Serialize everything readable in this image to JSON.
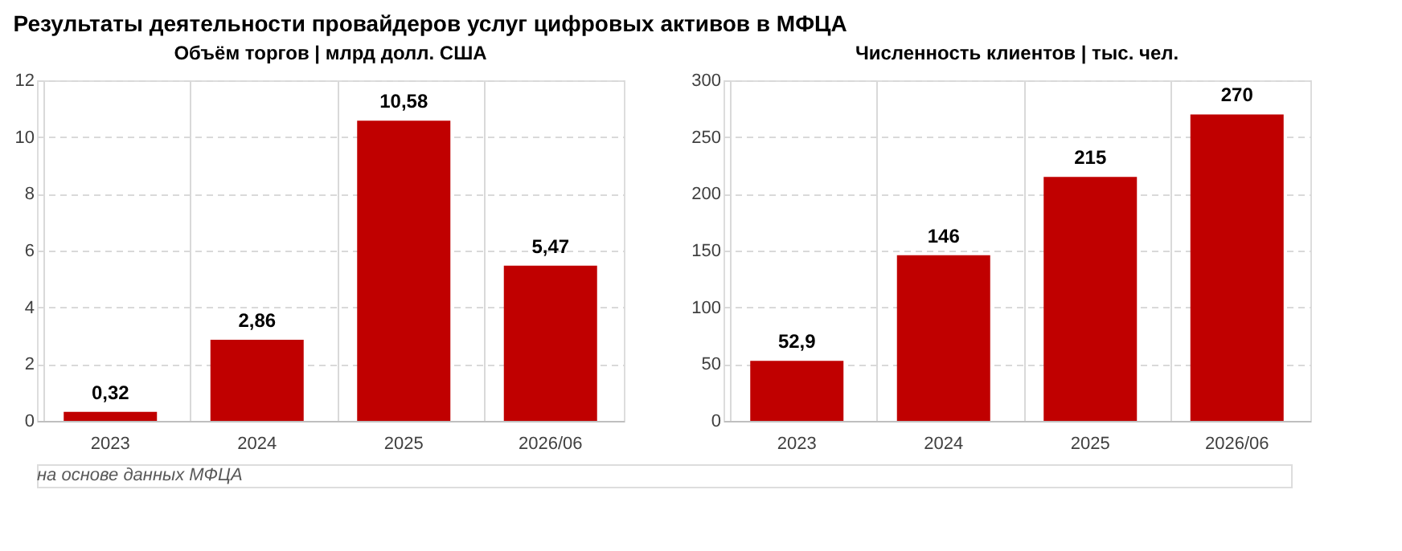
{
  "chart_data": [
    {
      "type": "bar",
      "title": "Результаты деятельности провайдеров услуг цифровых активов в МФЦА",
      "subtitle": "Объём торгов | млрд долл. США",
      "annotations": [
        "на основе данных МФЦА"
      ],
      "categories": [
        "2023",
        "2024",
        "2025",
        "2026/06"
      ],
      "values": [
        0.32,
        2.86,
        10.58,
        5.47
      ],
      "value_labels": [
        "0,32",
        "2,86",
        "10,58",
        "5,47"
      ],
      "color": "#c00000",
      "ylim": [
        0,
        12
      ],
      "yticks": [
        0,
        2,
        4,
        6,
        8,
        10,
        12
      ],
      "grid": true
    },
    {
      "type": "bar",
      "subtitle": "Численность клиентов | тыс. чел.",
      "categories": [
        "2023",
        "2024",
        "2025",
        "2026/06"
      ],
      "values": [
        52.9,
        146,
        215,
        270
      ],
      "value_labels": [
        "52,9",
        "146",
        "215",
        "270"
      ],
      "color": "#c00000",
      "ylim": [
        0,
        300
      ],
      "yticks": [
        0,
        50,
        100,
        150,
        200,
        250,
        300
      ],
      "grid": true
    }
  ]
}
